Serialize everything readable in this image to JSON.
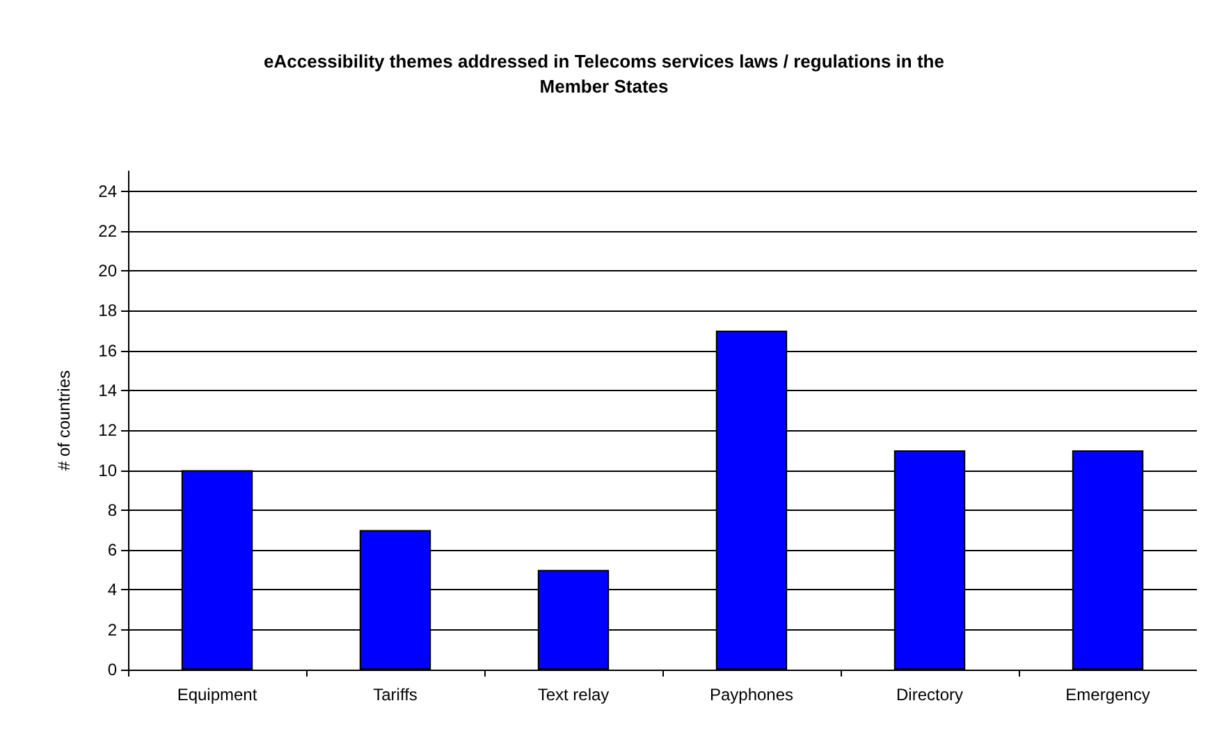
{
  "chart_data": {
    "type": "bar",
    "title": "eAccessibility themes addressed in Telecoms services laws / regulations in the\nMember States",
    "ylabel": "# of countries",
    "categories": [
      "Equipment",
      "Tariffs",
      "Text relay",
      "Payphones",
      "Directory",
      "Emergency"
    ],
    "values": [
      10,
      7,
      5,
      17,
      11,
      11
    ],
    "color": "#0000ff",
    "ylim": [
      0,
      25
    ],
    "yticks": [
      0,
      2,
      4,
      6,
      8,
      10,
      12,
      14,
      16,
      18,
      20,
      22,
      24
    ],
    "grid": true
  }
}
